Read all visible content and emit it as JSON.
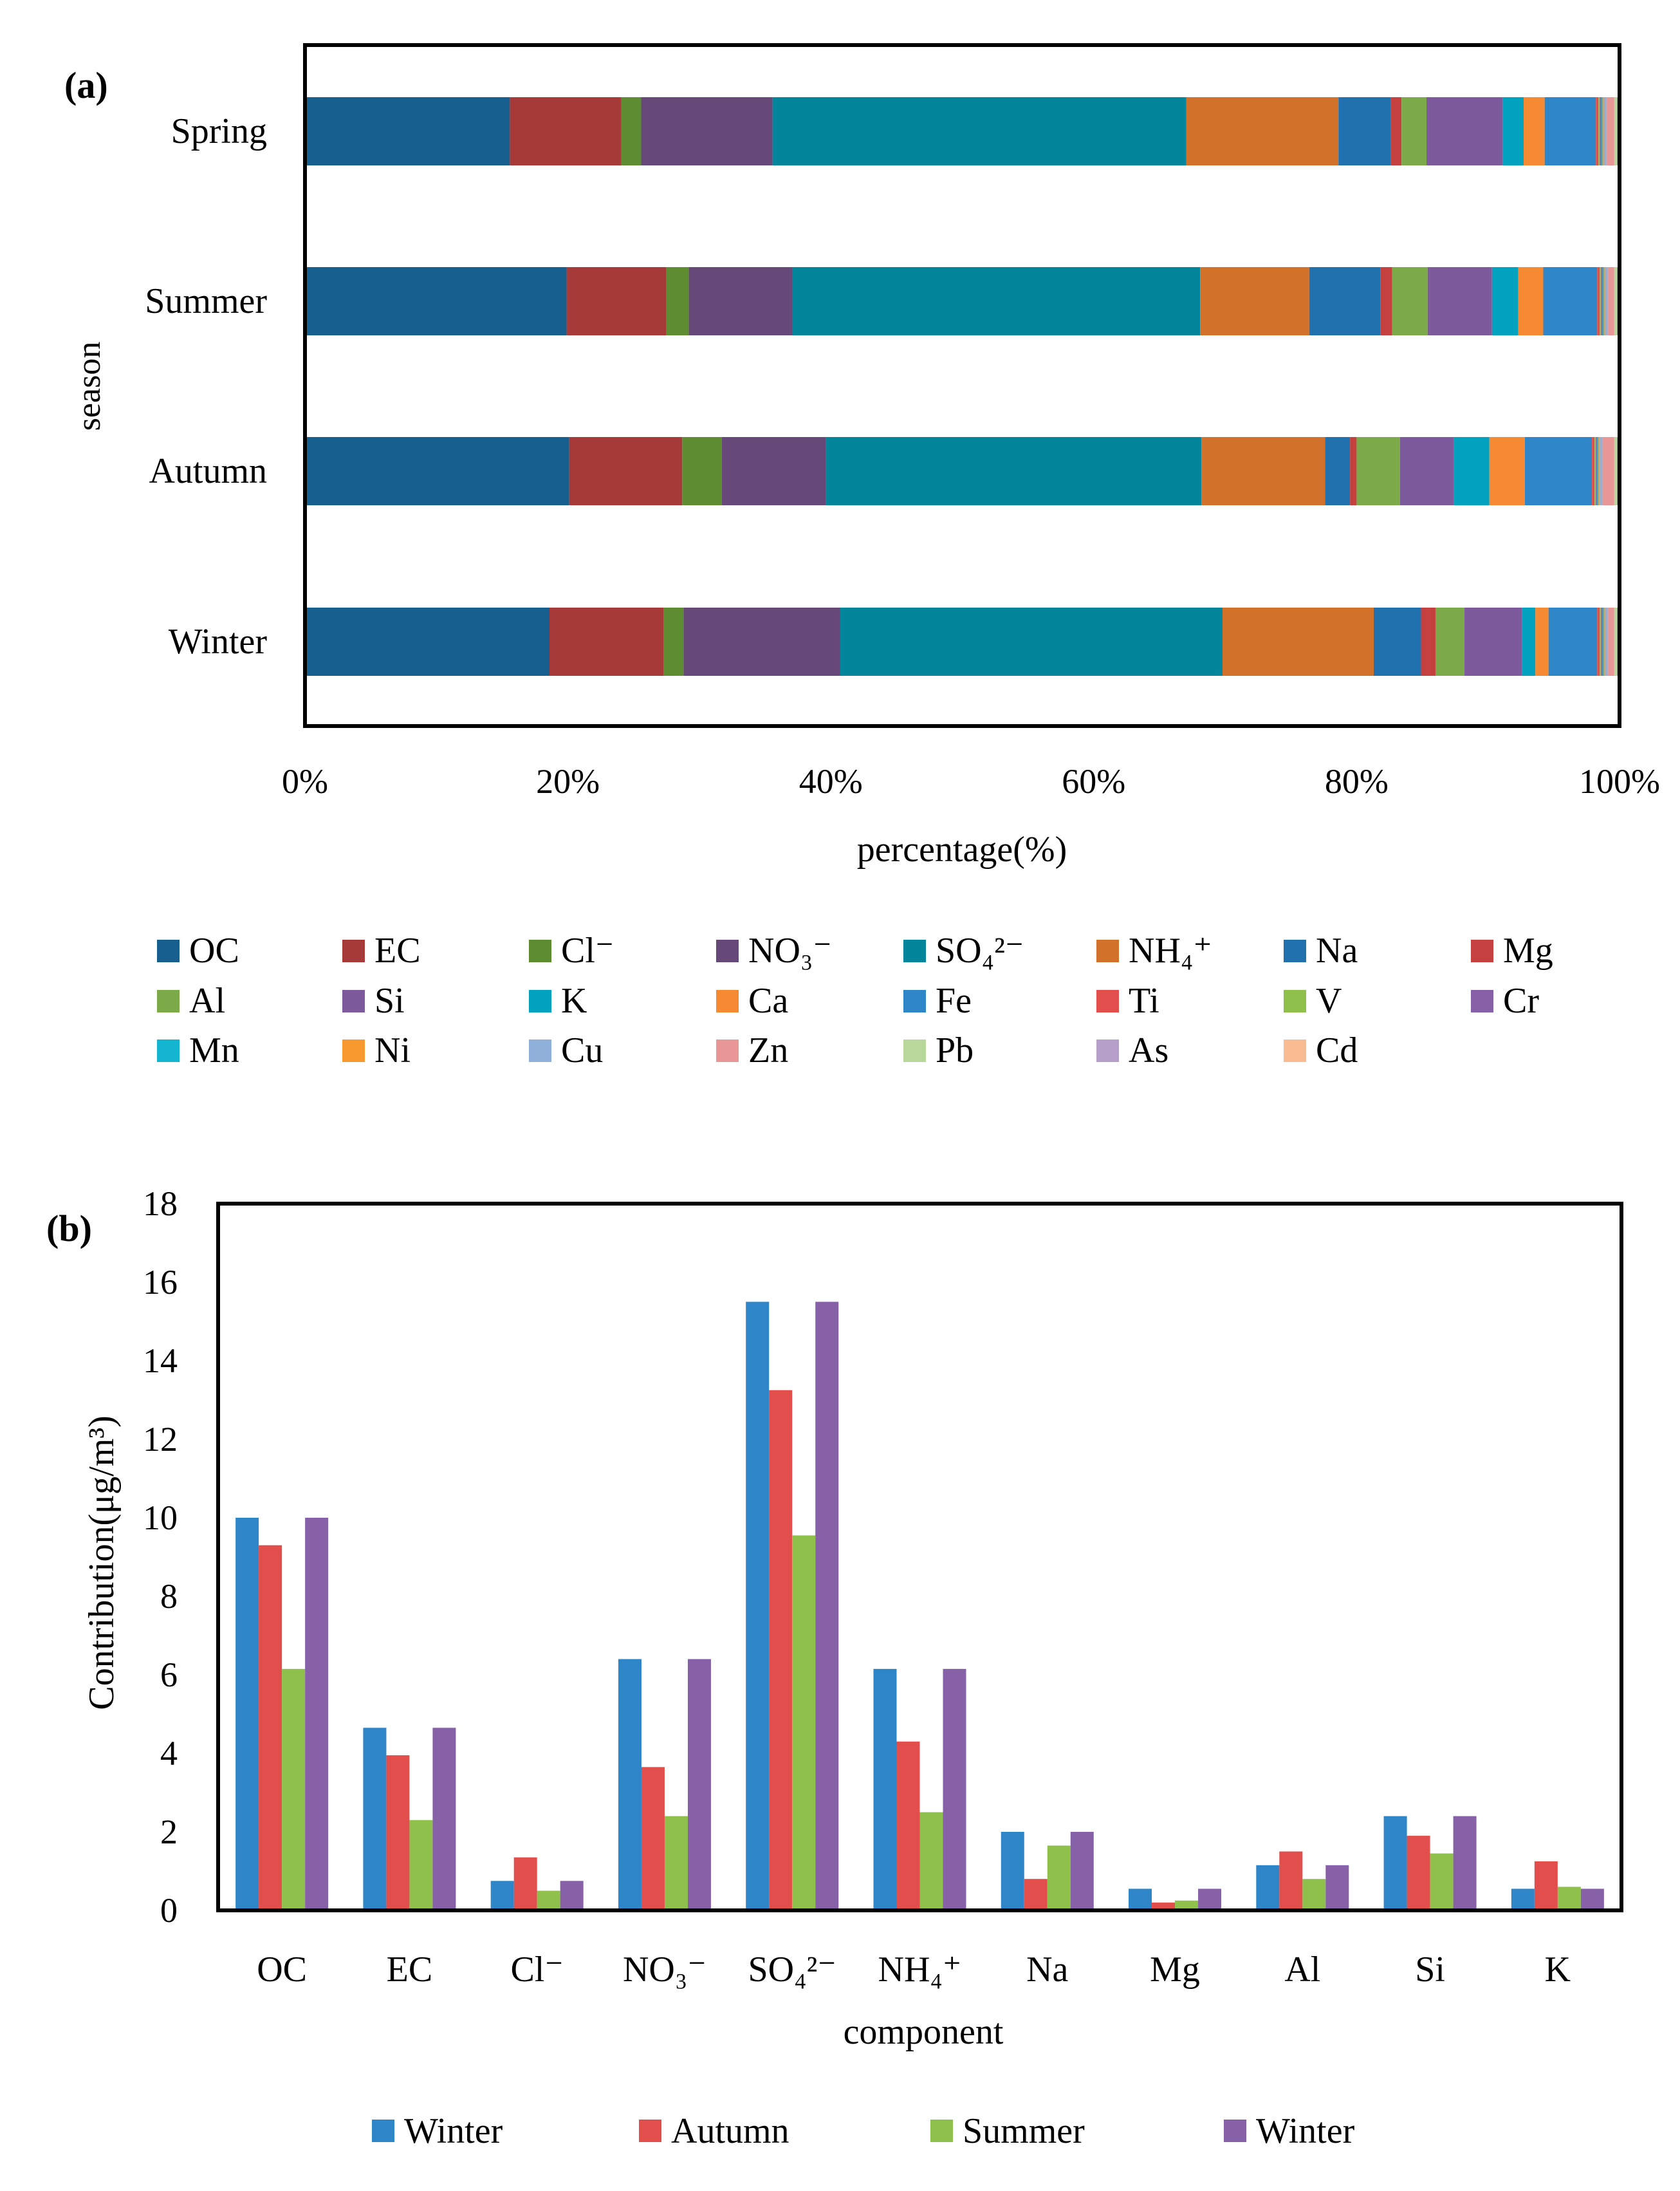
{
  "panel_a": {
    "label": "(a)",
    "chart_data": {
      "type": "stacked-bar-horizontal-percent",
      "title": "",
      "xlabel": "percentage(%)",
      "ylabel": "season",
      "xlim": [
        0,
        100
      ],
      "xticks": [
        "0%",
        "20%",
        "40%",
        "60%",
        "80%",
        "100%"
      ],
      "categories": [
        "Spring",
        "Summer",
        "Autumn",
        "Winter"
      ],
      "series": [
        {
          "name": "OC",
          "color": "#175F8E",
          "values": [
            15.6,
            19.9,
            20.1,
            18.6
          ]
        },
        {
          "name": "EC",
          "color": "#A63A38",
          "values": [
            8.5,
            7.6,
            8.6,
            8.7
          ]
        },
        {
          "name": "Cl⁻",
          "color": "#5E8C31",
          "values": [
            1.5,
            1.7,
            3.0,
            1.5
          ]
        },
        {
          "name": "NO₃⁻",
          "color": "#664979",
          "values": [
            10.0,
            7.9,
            7.9,
            11.9
          ]
        },
        {
          "name": "SO₄²⁻",
          "color": "#03859C",
          "values": [
            31.5,
            31.0,
            28.6,
            29.1
          ]
        },
        {
          "name": "NH₄⁺",
          "color": "#D2712A",
          "values": [
            11.6,
            8.3,
            9.4,
            11.5
          ]
        },
        {
          "name": "Na",
          "color": "#2071AE",
          "values": [
            4.0,
            5.4,
            1.9,
            3.6
          ]
        },
        {
          "name": "Mg",
          "color": "#C5413F",
          "values": [
            0.8,
            0.9,
            0.5,
            1.1
          ]
        },
        {
          "name": "Al",
          "color": "#7DAA48",
          "values": [
            1.9,
            2.7,
            3.3,
            2.2
          ]
        },
        {
          "name": "Si",
          "color": "#7D5A9C",
          "values": [
            5.8,
            4.9,
            4.1,
            4.4
          ]
        },
        {
          "name": "K",
          "color": "#00A2C0",
          "values": [
            1.6,
            2.0,
            2.7,
            1.0
          ]
        },
        {
          "name": "Ca",
          "color": "#F58A32",
          "values": [
            1.6,
            1.9,
            2.7,
            1.0
          ]
        },
        {
          "name": "Fe",
          "color": "#2E86C8",
          "values": [
            3.9,
            4.1,
            5.1,
            3.7
          ]
        },
        {
          "name": "Ti",
          "color": "#E24E4B",
          "values": [
            0.2,
            0.2,
            0.2,
            0.2
          ]
        },
        {
          "name": "V",
          "color": "#8FC04C",
          "values": [
            0.1,
            0.1,
            0.1,
            0.1
          ]
        },
        {
          "name": "Cr",
          "color": "#8761A8",
          "values": [
            0.1,
            0.1,
            0.1,
            0.1
          ]
        },
        {
          "name": "Mn",
          "color": "#14B5D0",
          "values": [
            0.1,
            0.1,
            0.1,
            0.1
          ]
        },
        {
          "name": "Ni",
          "color": "#F8992F",
          "values": [
            0.1,
            0.1,
            0.1,
            0.1
          ]
        },
        {
          "name": "Cu",
          "color": "#8FB0D8",
          "values": [
            0.2,
            0.2,
            0.2,
            0.2
          ]
        },
        {
          "name": "Zn",
          "color": "#E99796",
          "values": [
            0.6,
            0.5,
            0.9,
            0.5
          ]
        },
        {
          "name": "Pb",
          "color": "#B8D79A",
          "values": [
            0.2,
            0.2,
            0.2,
            0.2
          ]
        },
        {
          "name": "As",
          "color": "#B59FC9",
          "values": [
            0.1,
            0.1,
            0.1,
            0.1
          ]
        },
        {
          "name": "Cd",
          "color": "#F9BB92",
          "values": [
            0.1,
            0.1,
            0.1,
            0.1
          ]
        }
      ]
    }
  },
  "panel_b": {
    "label": "(b)",
    "chart_data": {
      "type": "bar",
      "title": "",
      "xlabel": "component",
      "ylabel": "Contribution(μg/m³)",
      "ylim": [
        0,
        18
      ],
      "yticks": [
        "0",
        "2",
        "4",
        "6",
        "8",
        "10",
        "12",
        "14",
        "16",
        "18"
      ],
      "categories": [
        "OC",
        "EC",
        "Cl⁻",
        "NO₃⁻",
        "SO₄²⁻",
        "NH₄⁺",
        "Na",
        "Mg",
        "Al",
        "Si",
        "K"
      ],
      "series": [
        {
          "name": "Winter",
          "color": "#2E86C8",
          "values": [
            10.0,
            4.65,
            0.75,
            6.4,
            15.5,
            6.15,
            2.0,
            0.55,
            1.15,
            2.4,
            0.55
          ]
        },
        {
          "name": "Autumn",
          "color": "#E24E4B",
          "values": [
            9.3,
            3.95,
            1.35,
            3.65,
            13.25,
            4.3,
            0.8,
            0.2,
            1.5,
            1.9,
            1.25
          ]
        },
        {
          "name": "Summer",
          "color": "#8FC04C",
          "values": [
            6.15,
            2.3,
            0.5,
            2.4,
            9.55,
            2.5,
            1.65,
            0.25,
            0.8,
            1.45,
            0.6
          ]
        },
        {
          "name": "Winter",
          "color": "#8761A8",
          "values": [
            10.0,
            4.65,
            0.75,
            6.4,
            15.5,
            6.15,
            2.0,
            0.55,
            1.15,
            2.4,
            0.55
          ]
        }
      ]
    }
  }
}
